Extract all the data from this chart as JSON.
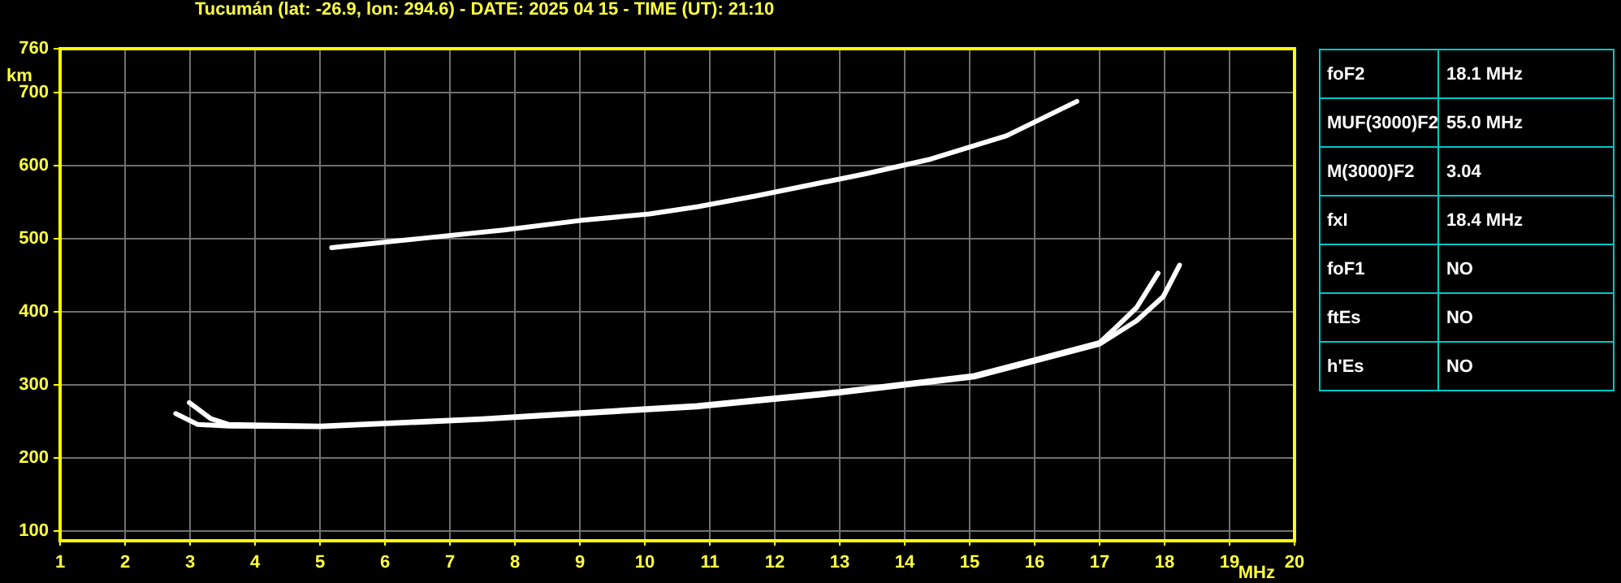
{
  "chart_data": [
    {
      "type": "line",
      "title": "Tucumán (lat: -26.9, lon: 294.6) - DATE: 2025 04 15 - TIME (UT): 21:10",
      "xlabel": "MHz",
      "ylabel": "km",
      "xlim": [
        1,
        20
      ],
      "xticks": [
        1,
        2,
        3,
        4,
        5,
        6,
        7,
        8,
        9,
        10,
        11,
        12,
        13,
        14,
        15,
        16,
        17,
        18,
        19,
        20
      ],
      "ylim": [
        87,
        760
      ],
      "yticks": [
        100,
        200,
        300,
        400,
        500,
        600,
        700,
        760
      ],
      "grid": true,
      "legend": false,
      "marker": "none",
      "line_style": "solid",
      "series": [
        {
          "color": "#ffffff",
          "x": [
            2.99,
            3.32,
            3.6,
            5,
            7.5,
            10.8,
            13,
            15.07,
            17,
            17.23,
            17.57,
            17.9
          ],
          "values": [
            276,
            254,
            246,
            244,
            254,
            272,
            291,
            313,
            358,
            377,
            406,
            453
          ]
        },
        {
          "color": "#ffffff",
          "x": [
            2.78,
            3.12,
            3.6,
            5,
            7.5,
            10.8,
            13,
            15.07,
            17,
            17.57,
            17.98,
            18.23
          ],
          "values": [
            261,
            246,
            244,
            243,
            253,
            270,
            289,
            311,
            356,
            388,
            421,
            464
          ]
        },
        {
          "color": "#ffffff",
          "x": [
            5.18,
            6.5,
            7.83,
            9,
            10.07,
            10.82,
            11.73,
            13.4,
            14.4,
            15.57,
            16.65
          ],
          "values": [
            488,
            500,
            512,
            525,
            534,
            544,
            559,
            589,
            609,
            641,
            688
          ]
        }
      ]
    },
    {
      "type": "other",
      "annotations": [
        "foF2",
        "18.1 MHz",
        "MUF(3000)F2",
        "55.0 MHz",
        "M(3000)F2",
        "3.04",
        "fxI",
        "18.4 MHz",
        "foF1",
        "NO",
        "ftEs",
        "NO",
        "h'Es",
        "NO"
      ]
    }
  ]
}
